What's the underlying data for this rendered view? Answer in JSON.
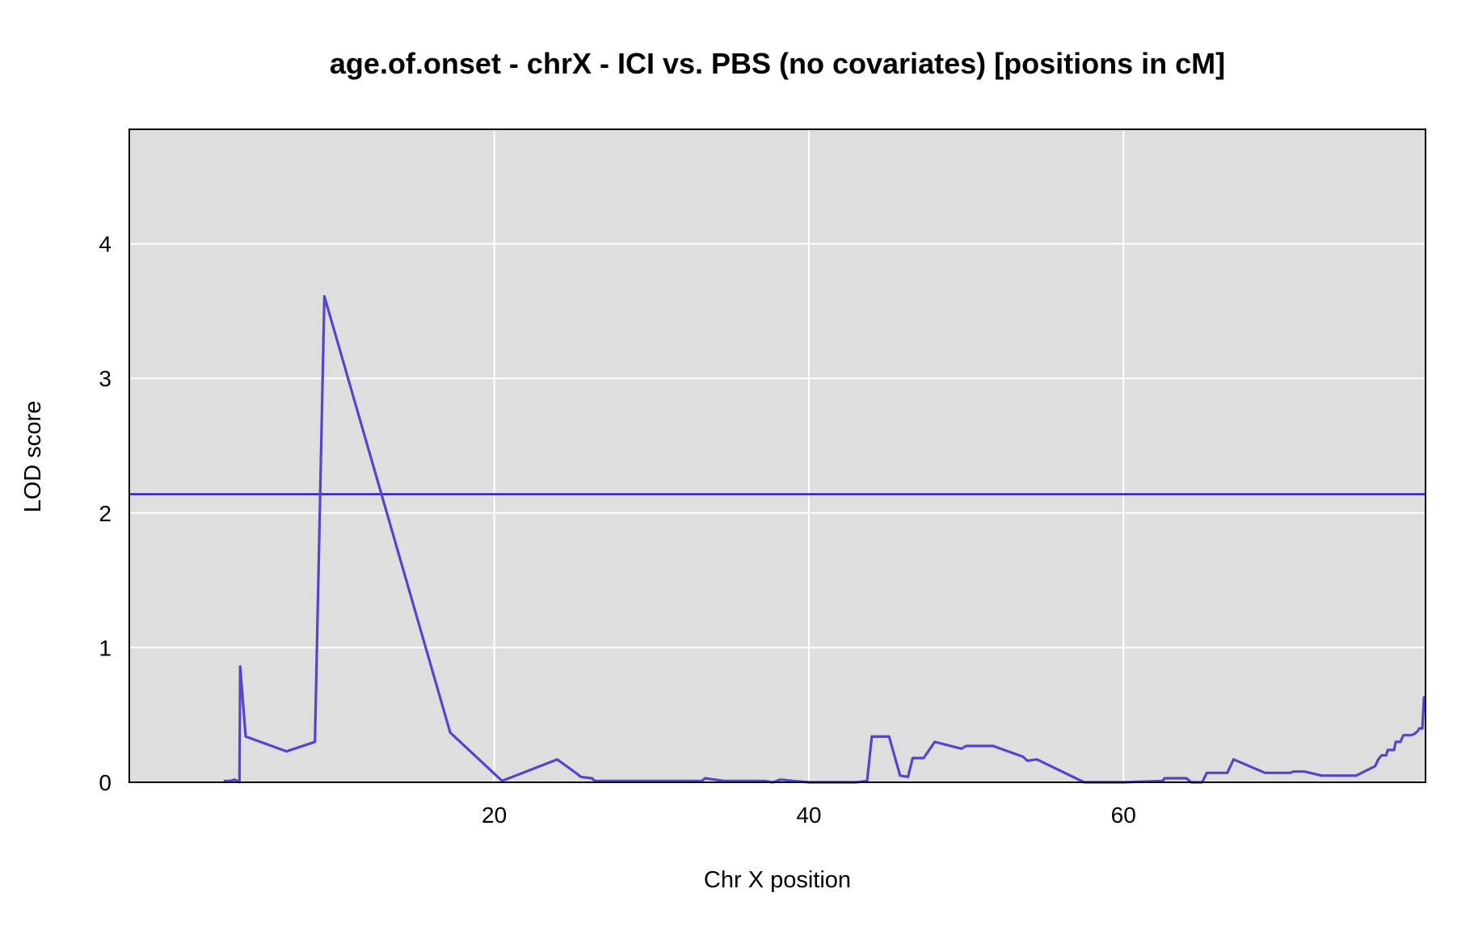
{
  "chart_data": {
    "type": "line",
    "title": "age.of.onset - chrX - ICI vs. PBS (no covariates) [positions in cM]",
    "xlabel": "Chr X position",
    "ylabel": "LOD score",
    "xlim": [
      -3.2,
      79.2
    ],
    "ylim": [
      0,
      4.85
    ],
    "x_ticks": [
      20,
      40,
      60
    ],
    "y_ticks": [
      0,
      1,
      2,
      3,
      4
    ],
    "grid": true,
    "threshold": 2.14,
    "colors": {
      "panel": "#dedede",
      "grid": "#ffffff",
      "series": "#5544cc",
      "threshold": "#2200dd"
    },
    "series": [
      {
        "points": [
          [
            2.8,
            0.01
          ],
          [
            3.2,
            0.01
          ],
          [
            3.5,
            0.02
          ],
          [
            3.8,
            0.0
          ],
          [
            3.85,
            0.86
          ],
          [
            4.2,
            0.34
          ],
          [
            6.8,
            0.23
          ],
          [
            8.6,
            0.3
          ],
          [
            9.2,
            3.61
          ],
          [
            17.2,
            0.37
          ],
          [
            20.5,
            0.01
          ],
          [
            24.0,
            0.17
          ],
          [
            25.3,
            0.06
          ],
          [
            25.5,
            0.04
          ],
          [
            26.2,
            0.03
          ],
          [
            26.4,
            0.01
          ],
          [
            30.0,
            0.01
          ],
          [
            33.2,
            0.01
          ],
          [
            33.4,
            0.03
          ],
          [
            34.6,
            0.01
          ],
          [
            37.2,
            0.01
          ],
          [
            37.7,
            0.0
          ],
          [
            38.2,
            0.02
          ],
          [
            39.0,
            0.01
          ],
          [
            40.0,
            0.0
          ],
          [
            43.0,
            0.0
          ],
          [
            43.7,
            0.01
          ],
          [
            44.0,
            0.34
          ],
          [
            45.1,
            0.34
          ],
          [
            45.8,
            0.05
          ],
          [
            46.3,
            0.04
          ],
          [
            46.6,
            0.18
          ],
          [
            47.3,
            0.18
          ],
          [
            48.0,
            0.3
          ],
          [
            49.7,
            0.25
          ],
          [
            50.0,
            0.27
          ],
          [
            51.7,
            0.27
          ],
          [
            53.6,
            0.19
          ],
          [
            53.9,
            0.16
          ],
          [
            54.5,
            0.17
          ],
          [
            57.5,
            0.0
          ],
          [
            60.0,
            0.0
          ],
          [
            62.5,
            0.01
          ],
          [
            62.6,
            0.03
          ],
          [
            64.0,
            0.03
          ],
          [
            64.3,
            0.0
          ],
          [
            65.0,
            0.0
          ],
          [
            65.3,
            0.07
          ],
          [
            66.6,
            0.07
          ],
          [
            67.0,
            0.17
          ],
          [
            69.0,
            0.07
          ],
          [
            70.6,
            0.07
          ],
          [
            70.8,
            0.08
          ],
          [
            71.5,
            0.08
          ],
          [
            72.6,
            0.05
          ],
          [
            74.8,
            0.05
          ],
          [
            76.0,
            0.12
          ],
          [
            76.2,
            0.17
          ],
          [
            76.4,
            0.2
          ],
          [
            76.7,
            0.2
          ],
          [
            76.8,
            0.24
          ],
          [
            77.2,
            0.24
          ],
          [
            77.3,
            0.3
          ],
          [
            77.6,
            0.3
          ],
          [
            77.8,
            0.35
          ],
          [
            78.3,
            0.35
          ],
          [
            78.5,
            0.36
          ],
          [
            78.7,
            0.38
          ],
          [
            78.8,
            0.4
          ],
          [
            79.0,
            0.4
          ],
          [
            79.1,
            0.63
          ],
          [
            79.2,
            0.63
          ]
        ]
      }
    ]
  }
}
